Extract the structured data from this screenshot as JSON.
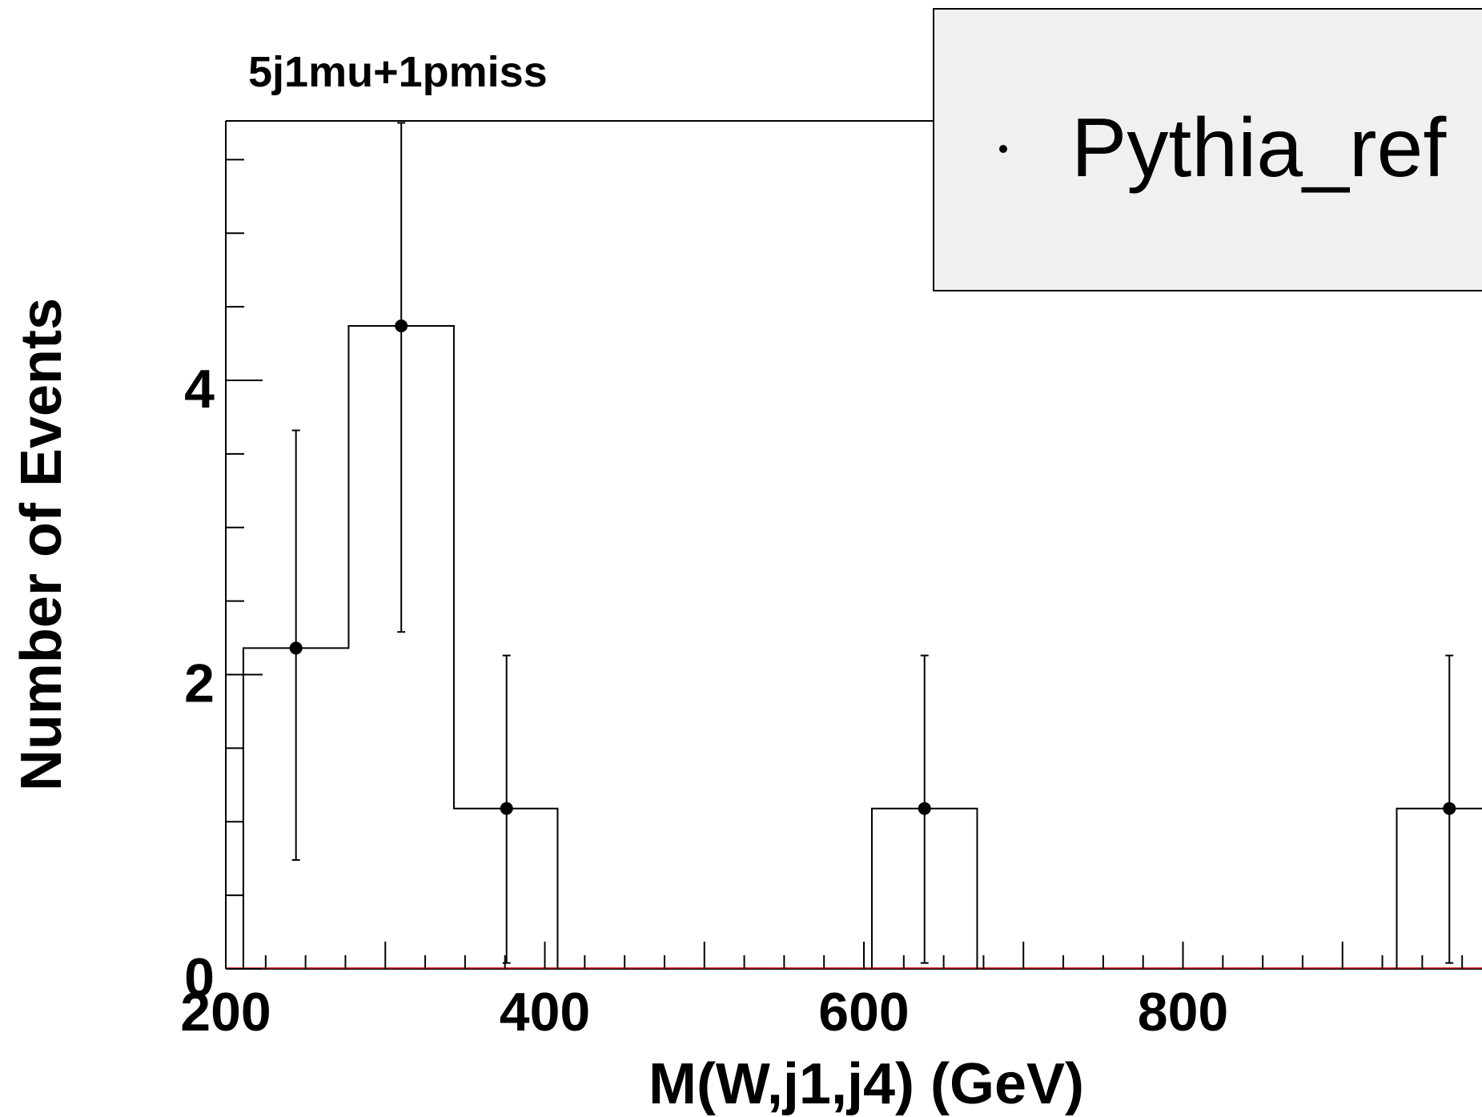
{
  "chart_data": {
    "type": "histogram",
    "title": "5j1mu+1pmiss",
    "xlabel": "M(W,j1,j4) (GeV)",
    "ylabel": "Number of Events",
    "xlim": [
      200,
      1050
    ],
    "ylim": [
      0,
      5.75
    ],
    "x_ticks": [
      200,
      400,
      600,
      800
    ],
    "y_ticks": [
      0,
      2,
      4
    ],
    "legend": {
      "entries": [
        "Pythia_ref"
      ],
      "position": "top-right"
    },
    "grid": false,
    "colors": {
      "line": "#000000",
      "legend_bg": "#f0f0f0",
      "baseline": "#cc0000"
    },
    "bins": [
      {
        "low": 211,
        "high": 277,
        "center": 244,
        "value": 2.18,
        "err_low": 1.44,
        "err_high": 1.48
      },
      {
        "low": 277,
        "high": 343,
        "center": 310,
        "value": 4.37,
        "err_low": 2.08,
        "err_high": 1.38
      },
      {
        "low": 343,
        "high": 408,
        "center": 376,
        "value": 1.09,
        "err_low": 1.05,
        "err_high": 1.04
      },
      {
        "low": 605,
        "high": 671,
        "center": 638,
        "value": 1.09,
        "err_low": 1.05,
        "err_high": 1.04
      },
      {
        "low": 934,
        "high": 999,
        "center": 967,
        "value": 1.09,
        "err_low": 1.05,
        "err_high": 1.04
      }
    ]
  }
}
